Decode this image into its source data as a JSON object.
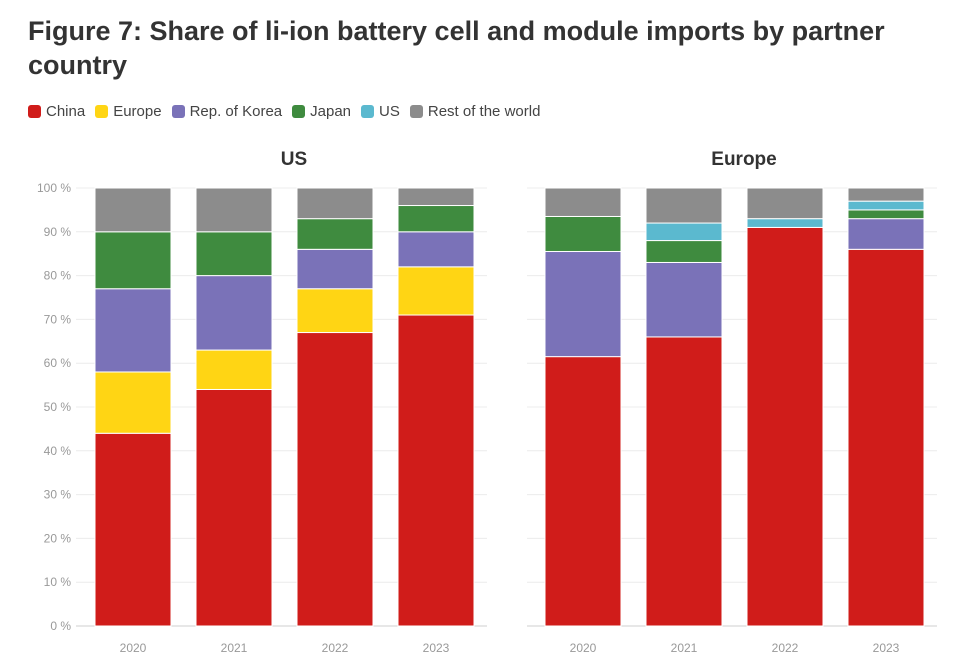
{
  "title": "Figure 7: Share of li-ion battery cell and module imports by partner country",
  "legend": [
    {
      "label": "China",
      "color": "#d01c1a"
    },
    {
      "label": "Europe",
      "color": "#ffd514"
    },
    {
      "label": "Rep. of Korea",
      "color": "#7a72b8"
    },
    {
      "label": "Japan",
      "color": "#3f8b3f"
    },
    {
      "label": "US",
      "color": "#5bb9cf"
    },
    {
      "label": "Rest of the world",
      "color": "#8c8c8c"
    }
  ],
  "chart_data": [
    {
      "type": "bar",
      "stacked": true,
      "title": "US",
      "categories": [
        "2020",
        "2021",
        "2022",
        "2023"
      ],
      "yticks": [
        "0 %",
        "10 %",
        "20 %",
        "30 %",
        "40 %",
        "50 %",
        "60 %",
        "70 %",
        "80 %",
        "90 %",
        "100 %"
      ],
      "ylim": [
        0,
        100
      ],
      "series": [
        {
          "name": "China",
          "values": [
            44,
            54,
            67,
            71
          ]
        },
        {
          "name": "Europe",
          "values": [
            14,
            9,
            10,
            11
          ]
        },
        {
          "name": "Rep. of Korea",
          "values": [
            19,
            17,
            9,
            8
          ]
        },
        {
          "name": "Japan",
          "values": [
            13,
            10,
            7,
            6
          ]
        },
        {
          "name": "US",
          "values": [
            0,
            0,
            0,
            0
          ]
        },
        {
          "name": "Rest of the world",
          "values": [
            10,
            10,
            7,
            4
          ]
        }
      ]
    },
    {
      "type": "bar",
      "stacked": true,
      "title": "Europe",
      "categories": [
        "2020",
        "2021",
        "2022",
        "2023"
      ],
      "yticks": [],
      "ylim": [
        0,
        100
      ],
      "series": [
        {
          "name": "China",
          "values": [
            61.5,
            66,
            91,
            86
          ]
        },
        {
          "name": "Europe",
          "values": [
            0,
            0,
            0,
            0
          ]
        },
        {
          "name": "Rep. of Korea",
          "values": [
            24,
            17,
            0,
            7
          ]
        },
        {
          "name": "Japan",
          "values": [
            8,
            5,
            0,
            2
          ]
        },
        {
          "name": "US",
          "values": [
            0,
            4,
            2,
            2
          ]
        },
        {
          "name": "Rest of the world",
          "values": [
            6.5,
            8,
            7,
            3
          ]
        }
      ]
    }
  ]
}
